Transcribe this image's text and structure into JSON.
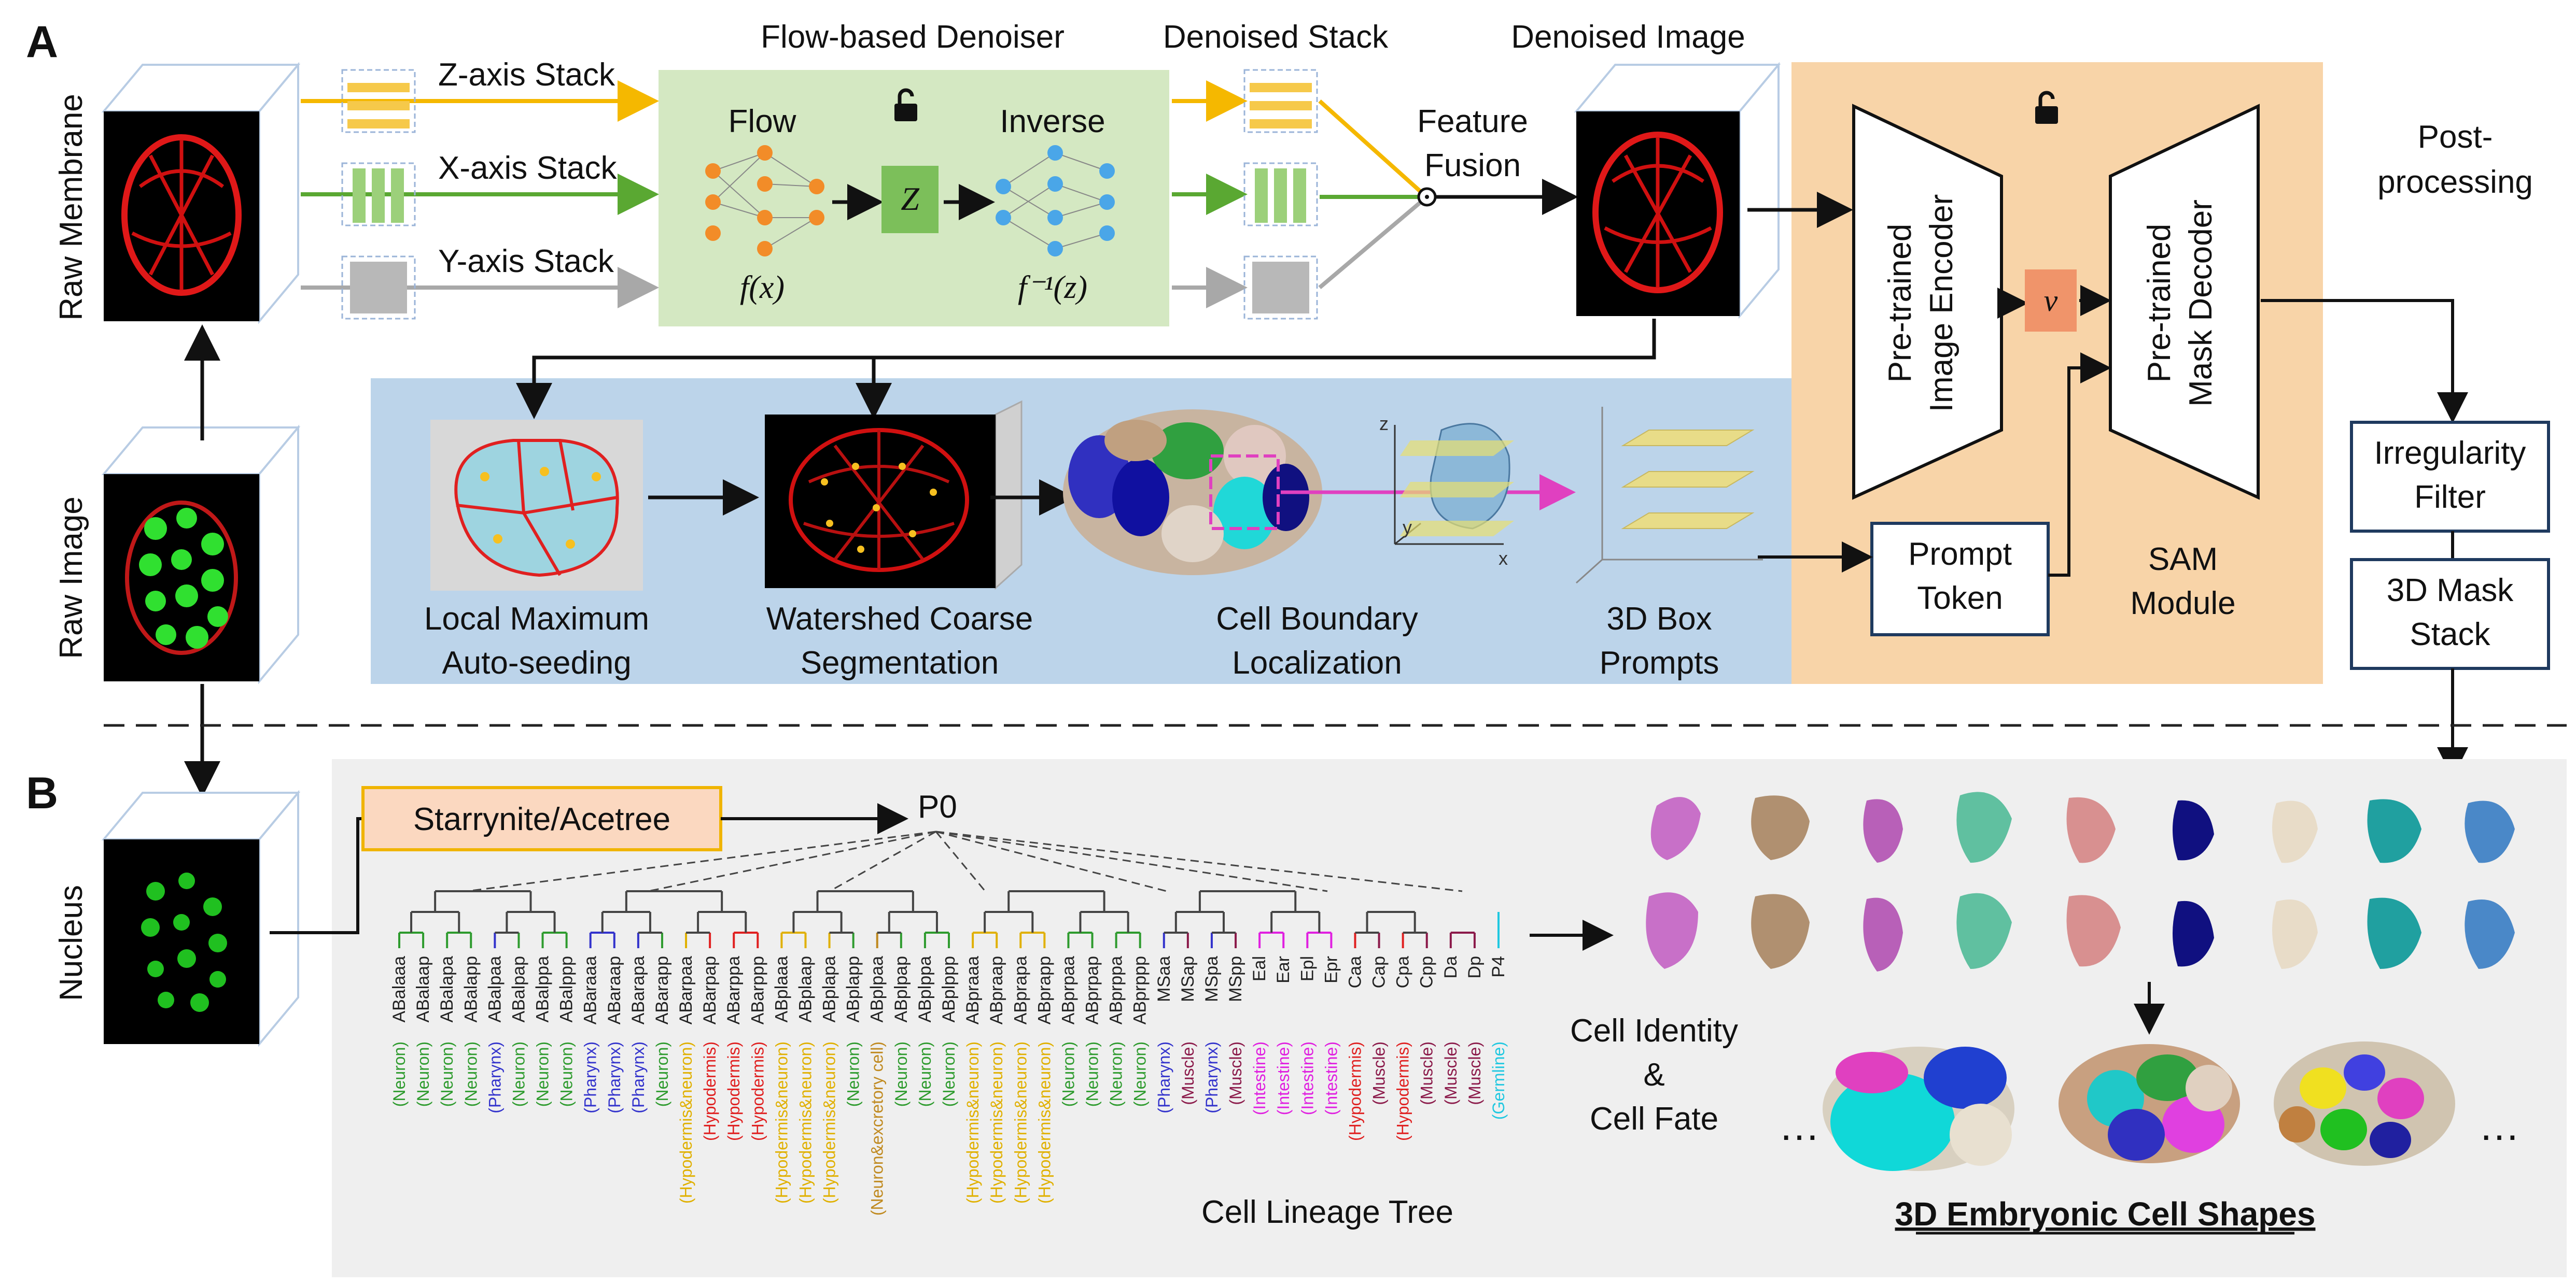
{
  "panel_a": {
    "letter": "A",
    "raw_membrane": "Raw Membrane",
    "raw_image": "Raw Image",
    "z_axis_stack": "Z-axis Stack",
    "x_axis_stack": "X-axis Stack",
    "y_axis_stack": "Y-axis Stack",
    "denoiser_title": "Flow-based Denoiser",
    "flow": "Flow",
    "inverse": "Inverse",
    "z_node": "Z",
    "f_x": "f(x)",
    "f_inv_z": "f⁻¹(z)",
    "denoised_stack": "Denoised Stack",
    "feature_fusion_1": "Feature",
    "feature_fusion_2": "Fusion",
    "denoised_image": "Denoised Image",
    "encoder_1": "Pre-trained",
    "encoder_2": "Image Encoder",
    "decoder_1": "Pre-trained",
    "decoder_2": "Mask Decoder",
    "v_node": "v",
    "sam_1": "SAM",
    "sam_2": "Module",
    "post_1": "Post-",
    "post_2": "processing",
    "irregularity_1": "Irregularity",
    "irregularity_2": "Filter",
    "mask_stack_1": "3D Mask",
    "mask_stack_2": "Stack",
    "prompt_1": "Prompt",
    "prompt_2": "Token",
    "seeding_1": "Local Maximum",
    "seeding_2": "Auto-seeding",
    "watershed_1": "Watershed Coarse",
    "watershed_2": "Segmentation",
    "boundary_1": "Cell Boundary",
    "boundary_2": "Localization",
    "box_1": "3D Box",
    "box_2": "Prompts",
    "axis_z": "z",
    "axis_y": "y",
    "axis_x": "x"
  },
  "panel_b": {
    "letter": "B",
    "nucleus": "Nucleus",
    "starrynite": "Starrynite/Acetree",
    "root": "P0",
    "tree_label": "Cell Lineage Tree",
    "identity_1": "Cell Identity",
    "identity_2": "&",
    "identity_3": "Cell Fate",
    "shapes_label": "3D Embryonic Cell Shapes",
    "ellipsis_left": "…",
    "ellipsis_right": "…",
    "leaves": [
      {
        "name": "ABalaaa",
        "fate": "(Neuron)",
        "color": "#2e9b2e"
      },
      {
        "name": "ABalaap",
        "fate": "(Neuron)",
        "color": "#2e9b2e"
      },
      {
        "name": "ABalapa",
        "fate": "(Neuron)",
        "color": "#2e9b2e"
      },
      {
        "name": "ABalapp",
        "fate": "(Neuron)",
        "color": "#2e9b2e"
      },
      {
        "name": "ABalpaa",
        "fate": "(Pharynx)",
        "color": "#3333cc"
      },
      {
        "name": "ABalpap",
        "fate": "(Neuron)",
        "color": "#2e9b2e"
      },
      {
        "name": "ABalppa",
        "fate": "(Neuron)",
        "color": "#2e9b2e"
      },
      {
        "name": "ABalppp",
        "fate": "(Neuron)",
        "color": "#2e9b2e"
      },
      {
        "name": "ABaraaa",
        "fate": "(Pharynx)",
        "color": "#3333cc"
      },
      {
        "name": "ABaraap",
        "fate": "(Pharynx)",
        "color": "#3333cc"
      },
      {
        "name": "ABarapa",
        "fate": "(Pharynx)",
        "color": "#3333cc"
      },
      {
        "name": "ABarapp",
        "fate": "(Neuron)",
        "color": "#2e9b2e"
      },
      {
        "name": "ABarpaa",
        "fate": "(Hypodermis&neuron)",
        "color": "#e0b000"
      },
      {
        "name": "ABarpap",
        "fate": "(Hypodermis)",
        "color": "#e02020"
      },
      {
        "name": "ABarppa",
        "fate": "(Hypodermis)",
        "color": "#e02020"
      },
      {
        "name": "ABarppp",
        "fate": "(Hypodermis)",
        "color": "#e02020"
      },
      {
        "name": "ABplaaa",
        "fate": "(Hypodermis&neuron)",
        "color": "#e0b000"
      },
      {
        "name": "ABplaap",
        "fate": "(Hypodermis&neuron)",
        "color": "#e0b000"
      },
      {
        "name": "ABplapa",
        "fate": "(Hypodermis&neuron)",
        "color": "#e0b000"
      },
      {
        "name": "ABplapp",
        "fate": "(Neuron)",
        "color": "#2e9b2e"
      },
      {
        "name": "ABplpaa",
        "fate": "(Neuron&excretory cell)",
        "color": "#c08a20"
      },
      {
        "name": "ABplpap",
        "fate": "(Neuron)",
        "color": "#2e9b2e"
      },
      {
        "name": "ABplppa",
        "fate": "(Neuron)",
        "color": "#2e9b2e"
      },
      {
        "name": "ABplppp",
        "fate": "(Neuron)",
        "color": "#2e9b2e"
      },
      {
        "name": "ABpraaa",
        "fate": "(Hypodermis&neuron)",
        "color": "#e0b000"
      },
      {
        "name": "ABpraap",
        "fate": "(Hypodermis&neuron)",
        "color": "#e0b000"
      },
      {
        "name": "ABprapa",
        "fate": "(Hypodermis&neuron)",
        "color": "#e0b000"
      },
      {
        "name": "ABprapp",
        "fate": "(Hypodermis&neuron)",
        "color": "#e0b000"
      },
      {
        "name": "ABprpaa",
        "fate": "(Neuron)",
        "color": "#2e9b2e"
      },
      {
        "name": "ABprpap",
        "fate": "(Neuron)",
        "color": "#2e9b2e"
      },
      {
        "name": "ABprppa",
        "fate": "(Neuron)",
        "color": "#2e9b2e"
      },
      {
        "name": "ABprppp",
        "fate": "(Neuron)",
        "color": "#2e9b2e"
      },
      {
        "name": "MSaa",
        "fate": "(Pharynx)",
        "color": "#3333cc"
      },
      {
        "name": "MSap",
        "fate": "(Muscle)",
        "color": "#8b1a4a"
      },
      {
        "name": "MSpa",
        "fate": "(Pharynx)",
        "color": "#3333cc"
      },
      {
        "name": "MSpp",
        "fate": "(Muscle)",
        "color": "#8b1a4a"
      },
      {
        "name": "Eal",
        "fate": "(Intestine)",
        "color": "#e020e0"
      },
      {
        "name": "Ear",
        "fate": "(Intestine)",
        "color": "#e020e0"
      },
      {
        "name": "Epl",
        "fate": "(Intestine)",
        "color": "#e020e0"
      },
      {
        "name": "Epr",
        "fate": "(Intestine)",
        "color": "#e020e0"
      },
      {
        "name": "Caa",
        "fate": "(Hypodermis)",
        "color": "#e02020"
      },
      {
        "name": "Cap",
        "fate": "(Muscle)",
        "color": "#8b1a4a"
      },
      {
        "name": "Cpa",
        "fate": "(Hypodermis)",
        "color": "#e02020"
      },
      {
        "name": "Cpp",
        "fate": "(Muscle)",
        "color": "#8b1a4a"
      },
      {
        "name": "Da",
        "fate": "(Muscle)",
        "color": "#8b1a4a"
      },
      {
        "name": "Dp",
        "fate": "(Muscle)",
        "color": "#8b1a4a"
      },
      {
        "name": "P4",
        "fate": "(Germline)",
        "color": "#20c8e0"
      }
    ]
  },
  "colors": {
    "denoiser_bg": "#d4e8c2",
    "sam_bg": "#f8d4a8",
    "blue_panel": "#bcd4ea",
    "panel_b_bg": "#efefef",
    "z_arrow": "#f5b800",
    "x_arrow": "#5aa832",
    "y_arrow": "#a8a8a8",
    "prompt_arrow": "#e040c0",
    "starrynite_fill": "#fbd8c0",
    "starrynite_border": "#f0b400"
  }
}
